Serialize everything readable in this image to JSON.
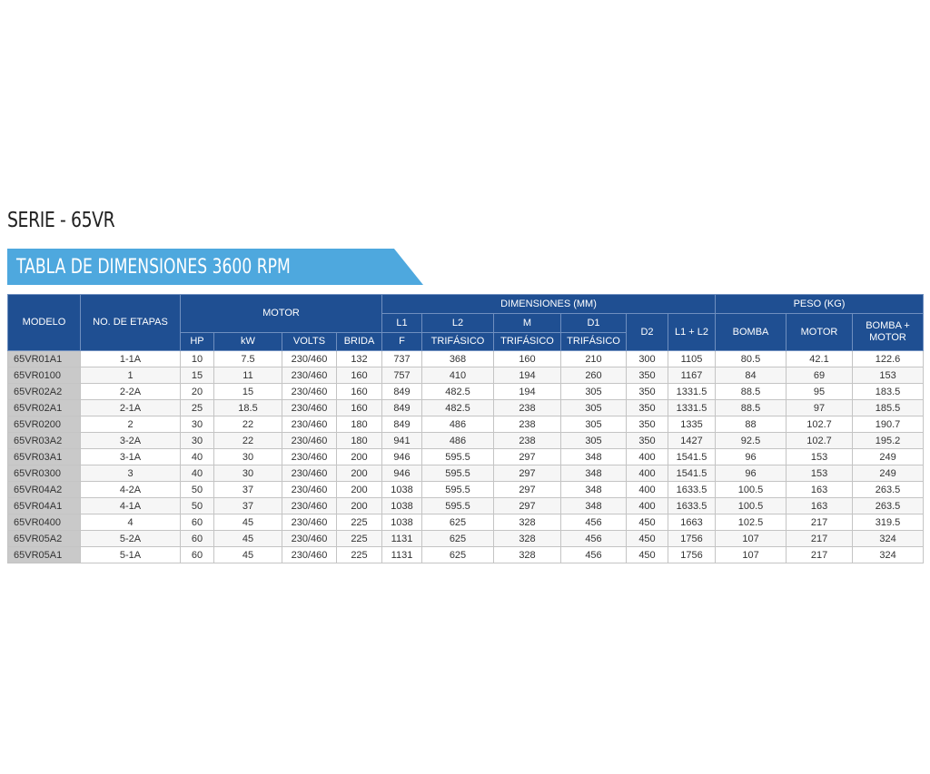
{
  "series_title": "SERIE - 65VR",
  "banner_title": "TABLA DE DIMENSIONES 3600 RPM",
  "headers": {
    "modelo": "MODELO",
    "etapas": "NO. DE ETAPAS",
    "motor": "MOTOR",
    "dimensiones": "DIMENSIONES (MM)",
    "peso": "PESO (KG)",
    "l1": "L1",
    "l2": "L2",
    "m": "M",
    "d1": "D1",
    "d2": "D2",
    "l1_l2": "L1 + L2",
    "bomba": "BOMBA",
    "motor_weight": "MOTOR",
    "bomba_motor": "BOMBA + MOTOR",
    "hp": "HP",
    "kw": "kW",
    "volts": "VOLTS",
    "brida": "BRIDA",
    "f": "F",
    "l2_sub": "TRIFÁSICO",
    "m_sub": "TRIFÁSICO",
    "d1_sub": "TRIFÁSICO"
  },
  "rows": [
    [
      "65VR01A1",
      "1-1A",
      "10",
      "7.5",
      "230/460",
      "132",
      "737",
      "368",
      "160",
      "210",
      "300",
      "1105",
      "80.5",
      "42.1",
      "122.6"
    ],
    [
      "65VR0100",
      "1",
      "15",
      "11",
      "230/460",
      "160",
      "757",
      "410",
      "194",
      "260",
      "350",
      "1167",
      "84",
      "69",
      "153"
    ],
    [
      "65VR02A2",
      "2-2A",
      "20",
      "15",
      "230/460",
      "160",
      "849",
      "482.5",
      "194",
      "305",
      "350",
      "1331.5",
      "88.5",
      "95",
      "183.5"
    ],
    [
      "65VR02A1",
      "2-1A",
      "25",
      "18.5",
      "230/460",
      "160",
      "849",
      "482.5",
      "238",
      "305",
      "350",
      "1331.5",
      "88.5",
      "97",
      "185.5"
    ],
    [
      "65VR0200",
      "2",
      "30",
      "22",
      "230/460",
      "180",
      "849",
      "486",
      "238",
      "305",
      "350",
      "1335",
      "88",
      "102.7",
      "190.7"
    ],
    [
      "65VR03A2",
      "3-2A",
      "30",
      "22",
      "230/460",
      "180",
      "941",
      "486",
      "238",
      "305",
      "350",
      "1427",
      "92.5",
      "102.7",
      "195.2"
    ],
    [
      "65VR03A1",
      "3-1A",
      "40",
      "30",
      "230/460",
      "200",
      "946",
      "595.5",
      "297",
      "348",
      "400",
      "1541.5",
      "96",
      "153",
      "249"
    ],
    [
      "65VR0300",
      "3",
      "40",
      "30",
      "230/460",
      "200",
      "946",
      "595.5",
      "297",
      "348",
      "400",
      "1541.5",
      "96",
      "153",
      "249"
    ],
    [
      "65VR04A2",
      "4-2A",
      "50",
      "37",
      "230/460",
      "200",
      "1038",
      "595.5",
      "297",
      "348",
      "400",
      "1633.5",
      "100.5",
      "163",
      "263.5"
    ],
    [
      "65VR04A1",
      "4-1A",
      "50",
      "37",
      "230/460",
      "200",
      "1038",
      "595.5",
      "297",
      "348",
      "400",
      "1633.5",
      "100.5",
      "163",
      "263.5"
    ],
    [
      "65VR0400",
      "4",
      "60",
      "45",
      "230/460",
      "225",
      "1038",
      "625",
      "328",
      "456",
      "450",
      "1663",
      "102.5",
      "217",
      "319.5"
    ],
    [
      "65VR05A2",
      "5-2A",
      "60",
      "45",
      "230/460",
      "225",
      "1131",
      "625",
      "328",
      "456",
      "450",
      "1756",
      "107",
      "217",
      "324"
    ],
    [
      "65VR05A1",
      "5-1A",
      "60",
      "45",
      "230/460",
      "225",
      "1131",
      "625",
      "328",
      "456",
      "450",
      "1756",
      "107",
      "217",
      "324"
    ]
  ],
  "colors": {
    "header_bg": "#1f4f92",
    "banner_bg": "#4ea8de",
    "model_cell_bg": "#c9c9c9"
  }
}
